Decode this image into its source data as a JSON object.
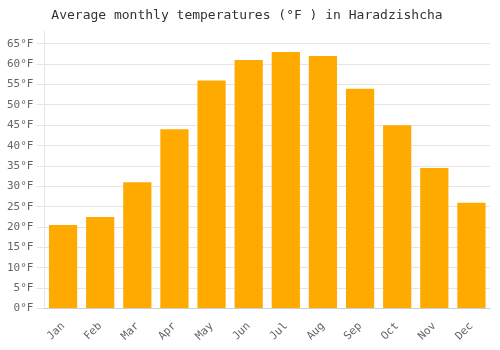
{
  "chart_data": {
    "type": "bar",
    "title": "Average monthly temperatures (°F ) in Haradzishcha",
    "categories": [
      "Jan",
      "Feb",
      "Mar",
      "Apr",
      "May",
      "Jun",
      "Jul",
      "Aug",
      "Sep",
      "Oct",
      "Nov",
      "Dec"
    ],
    "values": [
      20.5,
      22.5,
      31.0,
      44.0,
      56.0,
      61.0,
      63.0,
      62.0,
      54.0,
      45.0,
      34.5,
      26.0
    ],
    "color": "#FFAA00",
    "ylim": [
      0,
      68
    ],
    "yticks": [
      {
        "value": 0,
        "label": "0°F"
      },
      {
        "value": 5,
        "label": "5°F"
      },
      {
        "value": 10,
        "label": "10°F"
      },
      {
        "value": 15,
        "label": "15°F"
      },
      {
        "value": 20,
        "label": "20°F"
      },
      {
        "value": 25,
        "label": "25°F"
      },
      {
        "value": 30,
        "label": "30°F"
      },
      {
        "value": 35,
        "label": "35°F"
      },
      {
        "value": 40,
        "label": "40°F"
      },
      {
        "value": 45,
        "label": "45°F"
      },
      {
        "value": 50,
        "label": "50°F"
      },
      {
        "value": 55,
        "label": "55°F"
      },
      {
        "value": 60,
        "label": "60°F"
      },
      {
        "value": 65,
        "label": "65°F"
      }
    ],
    "grid": true
  }
}
